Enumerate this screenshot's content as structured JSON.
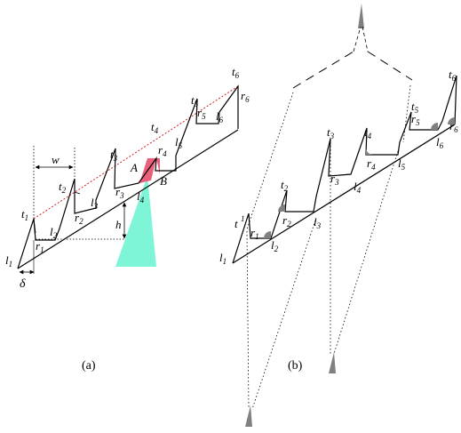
{
  "panel_a": {
    "caption": "(a)",
    "labels": {
      "l1": [
        "l",
        "1"
      ],
      "l2": [
        "l",
        "2"
      ],
      "l3": [
        "l",
        "3"
      ],
      "l4": [
        "l",
        "4"
      ],
      "l5": [
        "l",
        "5"
      ],
      "l6": [
        "l",
        "6"
      ],
      "r1": [
        "r",
        "1"
      ],
      "r2": [
        "r",
        "2"
      ],
      "r3": [
        "r",
        "3"
      ],
      "r4": [
        "r",
        "4"
      ],
      "r5": [
        "r",
        "5"
      ],
      "r6": [
        "r",
        "6"
      ],
      "t1": [
        "t",
        "1"
      ],
      "t2": [
        "t",
        "2"
      ],
      "t3": [
        "t",
        "3"
      ],
      "t4": [
        "t",
        "4"
      ],
      "t5": [
        "t",
        "5"
      ],
      "t6": [
        "t",
        "6"
      ],
      "w": "w",
      "h": "h",
      "delta": "δ",
      "A": "A",
      "B": "B"
    },
    "colors": {
      "envelope": "#cc2222",
      "region_A": "#e8607a",
      "region_B": "#e8607a",
      "cone": "#7ff5d8"
    }
  },
  "panel_b": {
    "caption": "(b)",
    "labels": {
      "l1": [
        "l",
        "1"
      ],
      "l2": [
        "l",
        "2"
      ],
      "l3": [
        "l",
        "3"
      ],
      "l4": [
        "l",
        "4"
      ],
      "l5": [
        "l",
        "5"
      ],
      "l6": [
        "l",
        "6"
      ],
      "r1": [
        "r",
        "1"
      ],
      "r2": [
        "r",
        "2"
      ],
      "r3": [
        "r",
        "3"
      ],
      "r4": [
        "r",
        "4"
      ],
      "r5": [
        "r",
        "5"
      ],
      "r6": [
        "r",
        "6"
      ],
      "t1": [
        "t",
        "1"
      ],
      "t2": [
        "t",
        "2"
      ],
      "t3": [
        "t",
        "3"
      ],
      "t4": [
        "t",
        "4"
      ],
      "t5": [
        "t",
        "5"
      ],
      "t6": [
        "t",
        "6"
      ],
      "top_mark": "1"
    },
    "colors": {
      "mark": "#808080"
    }
  }
}
